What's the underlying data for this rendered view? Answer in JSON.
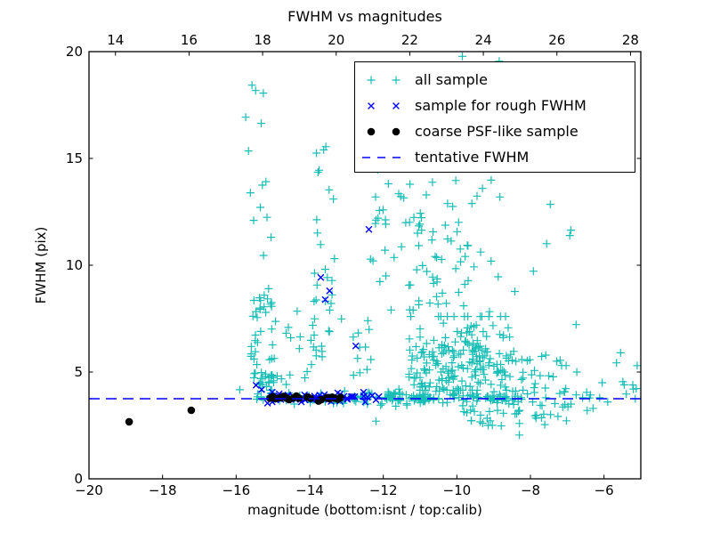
{
  "chart_data": {
    "type": "scatter",
    "title": "FWHM vs magnitudes",
    "xlabel": "magnitude (bottom:isnt / top:calib)",
    "ylabel": "FWHM (pix)",
    "axes": {
      "xlim": [
        -20,
        -5
      ],
      "ylim": [
        0,
        20
      ],
      "xticks": [
        -20,
        -18,
        -16,
        -14,
        -12,
        -10,
        -8,
        -6
      ],
      "yticks": [
        0,
        5,
        10,
        15,
        20
      ],
      "top_axis": {
        "offset": 33.28,
        "ticks": [
          14,
          16,
          18,
          20,
          22,
          24,
          26,
          28
        ]
      },
      "grid": false,
      "frame_color": "#000000"
    },
    "tentative_fwhm": 3.75,
    "legend": {
      "position": "upper right"
    },
    "series": [
      {
        "name": "all sample",
        "marker": "plus",
        "color": "#18bdb6",
        "points": [
          [
            -15.57,
            18.43
          ],
          [
            -15.47,
            18.18
          ],
          [
            -15.26,
            18.06
          ],
          [
            -15.74,
            16.93
          ],
          [
            -9.85,
            19.78
          ],
          [
            -8.85,
            19.55
          ],
          [
            -15.9,
            4.17
          ],
          [
            -12.2,
            2.7
          ],
          [
            -13.62,
            15.4
          ],
          [
            -10.33,
            14.9
          ],
          [
            -8.98,
            15.1
          ],
          [
            -7.46,
            12.85
          ],
          [
            -6.9,
            11.64
          ],
          [
            -6.93,
            11.39
          ],
          [
            -7.56,
            11.01
          ],
          [
            -7.92,
            9.72
          ],
          [
            -6.76,
            7.22
          ],
          [
            -5.55,
            5.9
          ],
          [
            -5.66,
            5.43
          ],
          [
            -5.45,
            4.4
          ],
          [
            -5.2,
            4.2
          ],
          [
            -5.9,
            3.6
          ],
          [
            -6.47,
            4.05
          ],
          [
            -6.74,
            5.0
          ],
          [
            -6.3,
            3.3
          ],
          [
            -5.1,
            5.3
          ],
          [
            -5.15,
            3.75
          ],
          [
            -6.05,
            4.5
          ],
          [
            -6.9,
            3.5
          ],
          [
            -9.3,
            2.6
          ],
          [
            -9.15,
            2.5
          ],
          [
            -8.3,
            2.05
          ]
        ],
        "clusters": [
          {
            "n": 12,
            "x": {
              "u": [
                -15.7,
                -15.0
              ]
            },
            "y": {
              "u": [
                8.5,
                16.8
              ]
            }
          },
          {
            "n": 30,
            "x": {
              "u": [
                -15.6,
                -14.9
              ]
            },
            "y": {
              "u": [
                5.0,
                8.5
              ]
            }
          },
          {
            "n": 28,
            "x": {
              "u": [
                -15.55,
                -14.85
              ]
            },
            "y": {
              "u": [
                3.95,
                5.0
              ]
            }
          },
          {
            "n": 9,
            "x": {
              "u": [
                -13.85,
                -13.35
              ]
            },
            "y": {
              "u": [
                10.5,
                15.6
              ]
            }
          },
          {
            "n": 22,
            "x": {
              "u": [
                -13.9,
                -13.3
              ]
            },
            "y": {
              "u": [
                5.5,
                10.5
              ]
            }
          },
          {
            "n": 14,
            "x": {
              "u": [
                -14.9,
                -13.9
              ]
            },
            "y": {
              "u": [
                4.3,
                8.0
              ]
            }
          },
          {
            "n": 12,
            "x": {
              "u": [
                -13.3,
                -12.3
              ]
            },
            "y": {
              "u": [
                4.5,
                7.5
              ]
            }
          },
          {
            "n": 8,
            "x": {
              "u": [
                -12.45,
                -11.3
              ]
            },
            "y": {
              "u": [
                10.5,
                13.5
              ]
            }
          },
          {
            "n": 30,
            "x": {
              "u": [
                -12.45,
                -10.5
              ]
            },
            "y": {
              "u": [
                7.6,
                12.6
              ]
            }
          },
          {
            "n": 45,
            "x": {
              "g": [
                -9.9,
                0.7
              ],
              "clip": [
                -11.3,
                -8.4
              ]
            },
            "y": {
              "g": [
                9.3,
                1.5
              ],
              "clip": [
                7.6,
                13.0
              ]
            }
          },
          {
            "n": 12,
            "x": {
              "u": [
                -12.2,
                -8.8
              ]
            },
            "y": {
              "u": [
                12.8,
                14.8
              ]
            }
          },
          {
            "n": 150,
            "x": {
              "g": [
                -9.5,
                0.65
              ],
              "clip": [
                -11.0,
                -8.2
              ]
            },
            "y": {
              "g": [
                5.6,
                1.0
              ],
              "clip": [
                4.15,
                7.6
              ]
            }
          },
          {
            "n": 50,
            "x": {
              "u": [
                -11.3,
                -9.9
              ]
            },
            "y": {
              "u": [
                4.2,
                6.6
              ]
            }
          },
          {
            "n": 55,
            "x": {
              "u": [
                -15.5,
                -12.5
              ]
            },
            "y": {
              "g": [
                3.82,
                0.13
              ],
              "clip": [
                3.5,
                4.15
              ]
            }
          },
          {
            "n": 130,
            "x": {
              "u": [
                -12.5,
                -8.2
              ]
            },
            "y": {
              "g": [
                3.8,
                0.16
              ],
              "clip": [
                3.4,
                4.2
              ]
            }
          },
          {
            "n": 14,
            "x": {
              "u": [
                -8.2,
                -5.1
              ]
            },
            "y": {
              "g": [
                3.9,
                0.35
              ],
              "clip": [
                3.2,
                4.6
              ]
            }
          },
          {
            "n": 28,
            "x": {
              "u": [
                -9.9,
                -6.9
              ]
            },
            "y": {
              "u": [
                2.4,
                3.5
              ]
            }
          },
          {
            "n": 30,
            "x": {
              "u": [
                -8.15,
                -7.0
              ]
            },
            "y": {
              "u": [
                2.9,
                5.8
              ]
            }
          }
        ]
      },
      {
        "name": "sample for rough FWHM",
        "marker": "x",
        "color": "#0000ff",
        "points": [
          [
            -12.39,
            11.68
          ],
          [
            -13.7,
            9.43
          ],
          [
            -13.46,
            8.8
          ],
          [
            -13.58,
            8.39
          ],
          [
            -12.75,
            6.22
          ],
          [
            -15.46,
            4.38
          ],
          [
            -15.31,
            4.17
          ],
          [
            -12.3,
            3.9
          ],
          [
            -12.2,
            3.7
          ],
          [
            -12.12,
            3.85
          ]
        ],
        "clusters": [
          {
            "n": 52,
            "x": {
              "u": [
                -15.15,
                -12.35
              ]
            },
            "y": {
              "g": [
                3.78,
                0.13
              ],
              "clip": [
                3.45,
                4.1
              ]
            }
          }
        ]
      },
      {
        "name": "coarse PSF-like sample",
        "marker": "dot",
        "color": "#000000",
        "points": [
          [
            -18.91,
            2.67
          ],
          [
            -17.22,
            3.21
          ],
          [
            -15.08,
            3.78
          ],
          [
            -15.0,
            3.84
          ],
          [
            -14.93,
            3.76
          ],
          [
            -14.79,
            3.8
          ],
          [
            -14.71,
            3.86
          ],
          [
            -14.63,
            3.78
          ],
          [
            -14.56,
            3.71
          ],
          [
            -14.43,
            3.8
          ],
          [
            -14.36,
            3.87
          ],
          [
            -14.29,
            3.78
          ],
          [
            -14.06,
            3.82
          ],
          [
            -13.98,
            3.77
          ],
          [
            -13.76,
            3.64
          ],
          [
            -13.69,
            3.71
          ],
          [
            -13.53,
            3.8
          ],
          [
            -13.46,
            3.75
          ],
          [
            -13.39,
            3.82
          ],
          [
            -13.31,
            3.77
          ],
          [
            -13.23,
            3.73
          ],
          [
            -13.16,
            3.8
          ]
        ],
        "clusters": []
      },
      {
        "name": "tentative FWHM",
        "marker": "dashed-line",
        "color": "#0000ff",
        "line_y": 3.75
      }
    ]
  }
}
